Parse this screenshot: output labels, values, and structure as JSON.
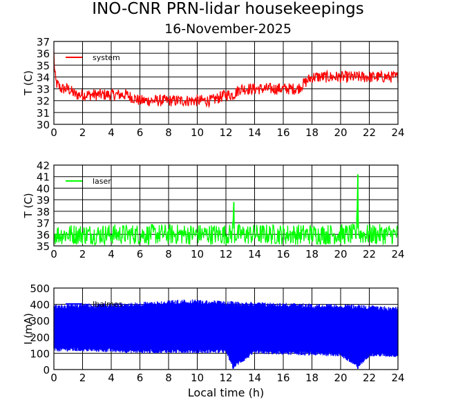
{
  "title": "INO-CNR PRN-lidar housekeepings",
  "subtitle": "16-November-2025",
  "colors": {
    "system": "#ff0000",
    "laser": "#00ff00",
    "current": "#0000ff",
    "axes": "#000000"
  },
  "chart_data": [
    {
      "type": "line",
      "ylabel": "T (C)",
      "xlabel": "",
      "xlim": [
        0,
        24
      ],
      "ylim": [
        30,
        37
      ],
      "xticks": [
        0,
        2,
        4,
        6,
        8,
        10,
        12,
        14,
        16,
        18,
        20,
        22,
        24
      ],
      "yticks": [
        30,
        31,
        32,
        33,
        34,
        35,
        36,
        37
      ],
      "grid": true,
      "legend_position": "top-left",
      "series": [
        {
          "name": "system",
          "color": "#ff0000",
          "x": [
            0,
            0.05,
            0.15,
            0.5,
            1.0,
            1.5,
            2.0,
            3.0,
            4.0,
            5.0,
            6.0,
            7.0,
            8.0,
            9.0,
            10.0,
            11.0,
            12.0,
            12.5,
            13.0,
            13.5,
            14.0,
            15.0,
            16.0,
            17.0,
            17.5,
            18.0,
            19.0,
            20.0,
            21.0,
            22.0,
            23.0,
            24.0
          ],
          "y": [
            36,
            34.5,
            33.5,
            33,
            33,
            32.5,
            32.5,
            32.5,
            32.5,
            32.5,
            32,
            32,
            32,
            32,
            32,
            32,
            32.5,
            32.5,
            33,
            33,
            33,
            33,
            33,
            33,
            33.5,
            34,
            34,
            34,
            34,
            34,
            34,
            34
          ],
          "band": [
            1,
            1,
            1,
            1,
            1,
            1,
            1,
            1,
            1,
            1,
            1,
            1,
            1,
            1,
            1,
            1,
            1,
            1,
            1,
            1,
            1,
            1,
            1,
            1,
            1,
            1,
            1,
            1,
            1,
            1,
            1,
            1
          ]
        }
      ]
    },
    {
      "type": "line",
      "ylabel": "T (C)",
      "xlabel": "",
      "xlim": [
        0,
        24
      ],
      "ylim": [
        35,
        42
      ],
      "xticks": [
        0,
        2,
        4,
        6,
        8,
        10,
        12,
        14,
        16,
        18,
        20,
        22,
        24
      ],
      "yticks": [
        35,
        36,
        37,
        38,
        39,
        40,
        41,
        42
      ],
      "grid": true,
      "legend_position": "top-left",
      "series": [
        {
          "name": "laser",
          "color": "#00ff00",
          "x": [
            0,
            12.45,
            12.55,
            12.6,
            21.1,
            21.2,
            21.25,
            24
          ],
          "y": [
            36,
            36,
            38.8,
            36,
            36,
            41.2,
            36,
            36
          ],
          "band": [
            1.8,
            1.8,
            0,
            1.8,
            1.8,
            0,
            1.8,
            1.8
          ]
        }
      ]
    },
    {
      "type": "line",
      "ylabel": "I (mA)",
      "xlabel": "Local time (h)",
      "xlim": [
        0,
        24
      ],
      "ylim": [
        0,
        500
      ],
      "xticks": [
        0,
        2,
        4,
        6,
        8,
        10,
        12,
        14,
        16,
        18,
        20,
        22,
        24
      ],
      "yticks": [
        0,
        100,
        200,
        300,
        400,
        500
      ],
      "grid": true,
      "legend_position": "top-left",
      "series": [
        {
          "name": "Ibalmes",
          "color": "#0000ff",
          "x": [
            0,
            2,
            4,
            6,
            8,
            9,
            10,
            12,
            12.5,
            14,
            16,
            18,
            20,
            21.2,
            22,
            24
          ],
          "lower": [
            110,
            110,
            105,
            100,
            100,
            100,
            100,
            100,
            5,
            95,
            90,
            85,
            80,
            5,
            80,
            75
          ],
          "upper": [
            400,
            405,
            405,
            415,
            425,
            430,
            430,
            420,
            420,
            415,
            410,
            405,
            400,
            400,
            395,
            385
          ]
        }
      ]
    }
  ]
}
